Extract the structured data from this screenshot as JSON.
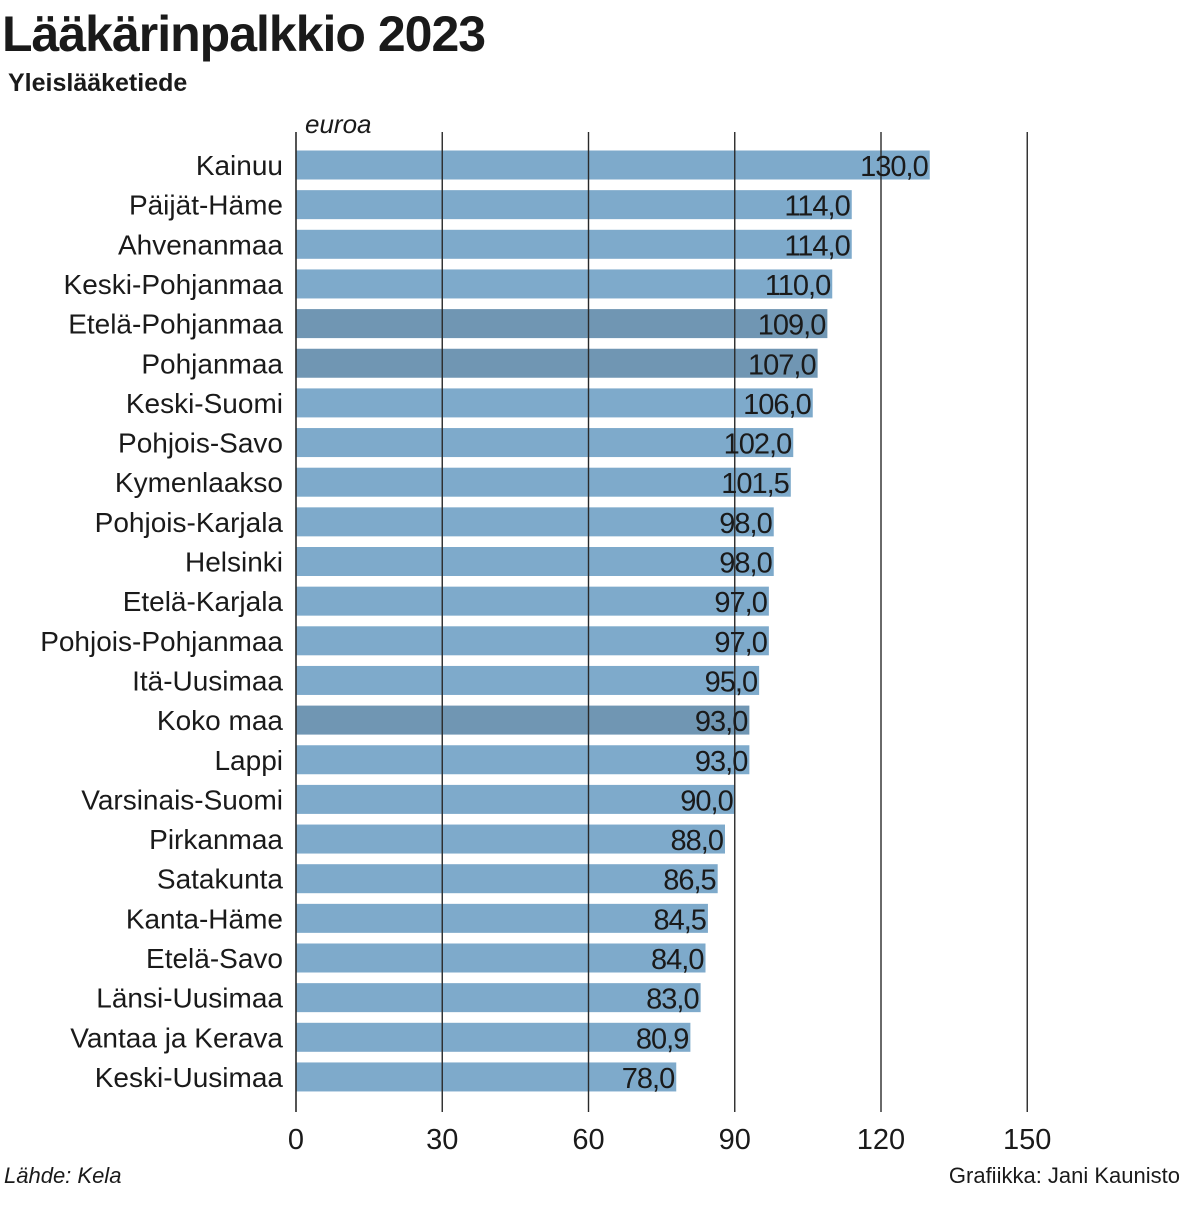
{
  "header": {
    "title": "Lääkärinpalkkio 2023",
    "subtitle": "Yleislääketiede"
  },
  "footer": {
    "source": "Lähde: Kela",
    "credit": "Grafiikka: Jani Kaunisto"
  },
  "colors": {
    "bar": "#7eaacb",
    "bar_highlight": "#7096b3",
    "grid": "#2a2a2a",
    "text": "#1a1a1a"
  },
  "chart_data": {
    "type": "bar",
    "orientation": "horizontal",
    "unit_label": "euroa",
    "xlim": [
      0,
      150
    ],
    "ticks": [
      0,
      30,
      60,
      90,
      120,
      150
    ],
    "tick_labels": [
      "0",
      "30",
      "60",
      "90",
      "120",
      "150"
    ],
    "grid": true,
    "categories": [
      "Kainuu",
      "Päijät-Häme",
      "Ahvenanmaa",
      "Keski-Pohjanmaa",
      "Etelä-Pohjanmaa",
      "Pohjanmaa",
      "Keski-Suomi",
      "Pohjois-Savo",
      "Kymenlaakso",
      "Pohjois-Karjala",
      "Helsinki",
      "Etelä-Karjala",
      "Pohjois-Pohjanmaa",
      "Itä-Uusimaa",
      "Koko maa",
      "Lappi",
      "Varsinais-Suomi",
      "Pirkanmaa",
      "Satakunta",
      "Kanta-Häme",
      "Etelä-Savo",
      "Länsi-Uusimaa",
      "Vantaa ja Kerava",
      "Keski-Uusimaa"
    ],
    "values": [
      130.0,
      114.0,
      114.0,
      110.0,
      109.0,
      107.0,
      106.0,
      102.0,
      101.5,
      98.0,
      98.0,
      97.0,
      97.0,
      95.0,
      93.0,
      93.0,
      90.0,
      88.0,
      86.5,
      84.5,
      84.0,
      83.0,
      80.9,
      78.0
    ],
    "value_labels": [
      "130,0",
      "114,0",
      "114,0",
      "110,0",
      "109,0",
      "107,0",
      "106,0",
      "102,0",
      "101,5",
      "98,0",
      "98,0",
      "97,0",
      "97,0",
      "95,0",
      "93,0",
      "93,0",
      "90,0",
      "88,0",
      "86,5",
      "84,5",
      "84,0",
      "83,0",
      "80,9",
      "78,0"
    ],
    "highlighted": [
      "Etelä-Pohjanmaa",
      "Pohjanmaa",
      "Koko maa"
    ]
  }
}
